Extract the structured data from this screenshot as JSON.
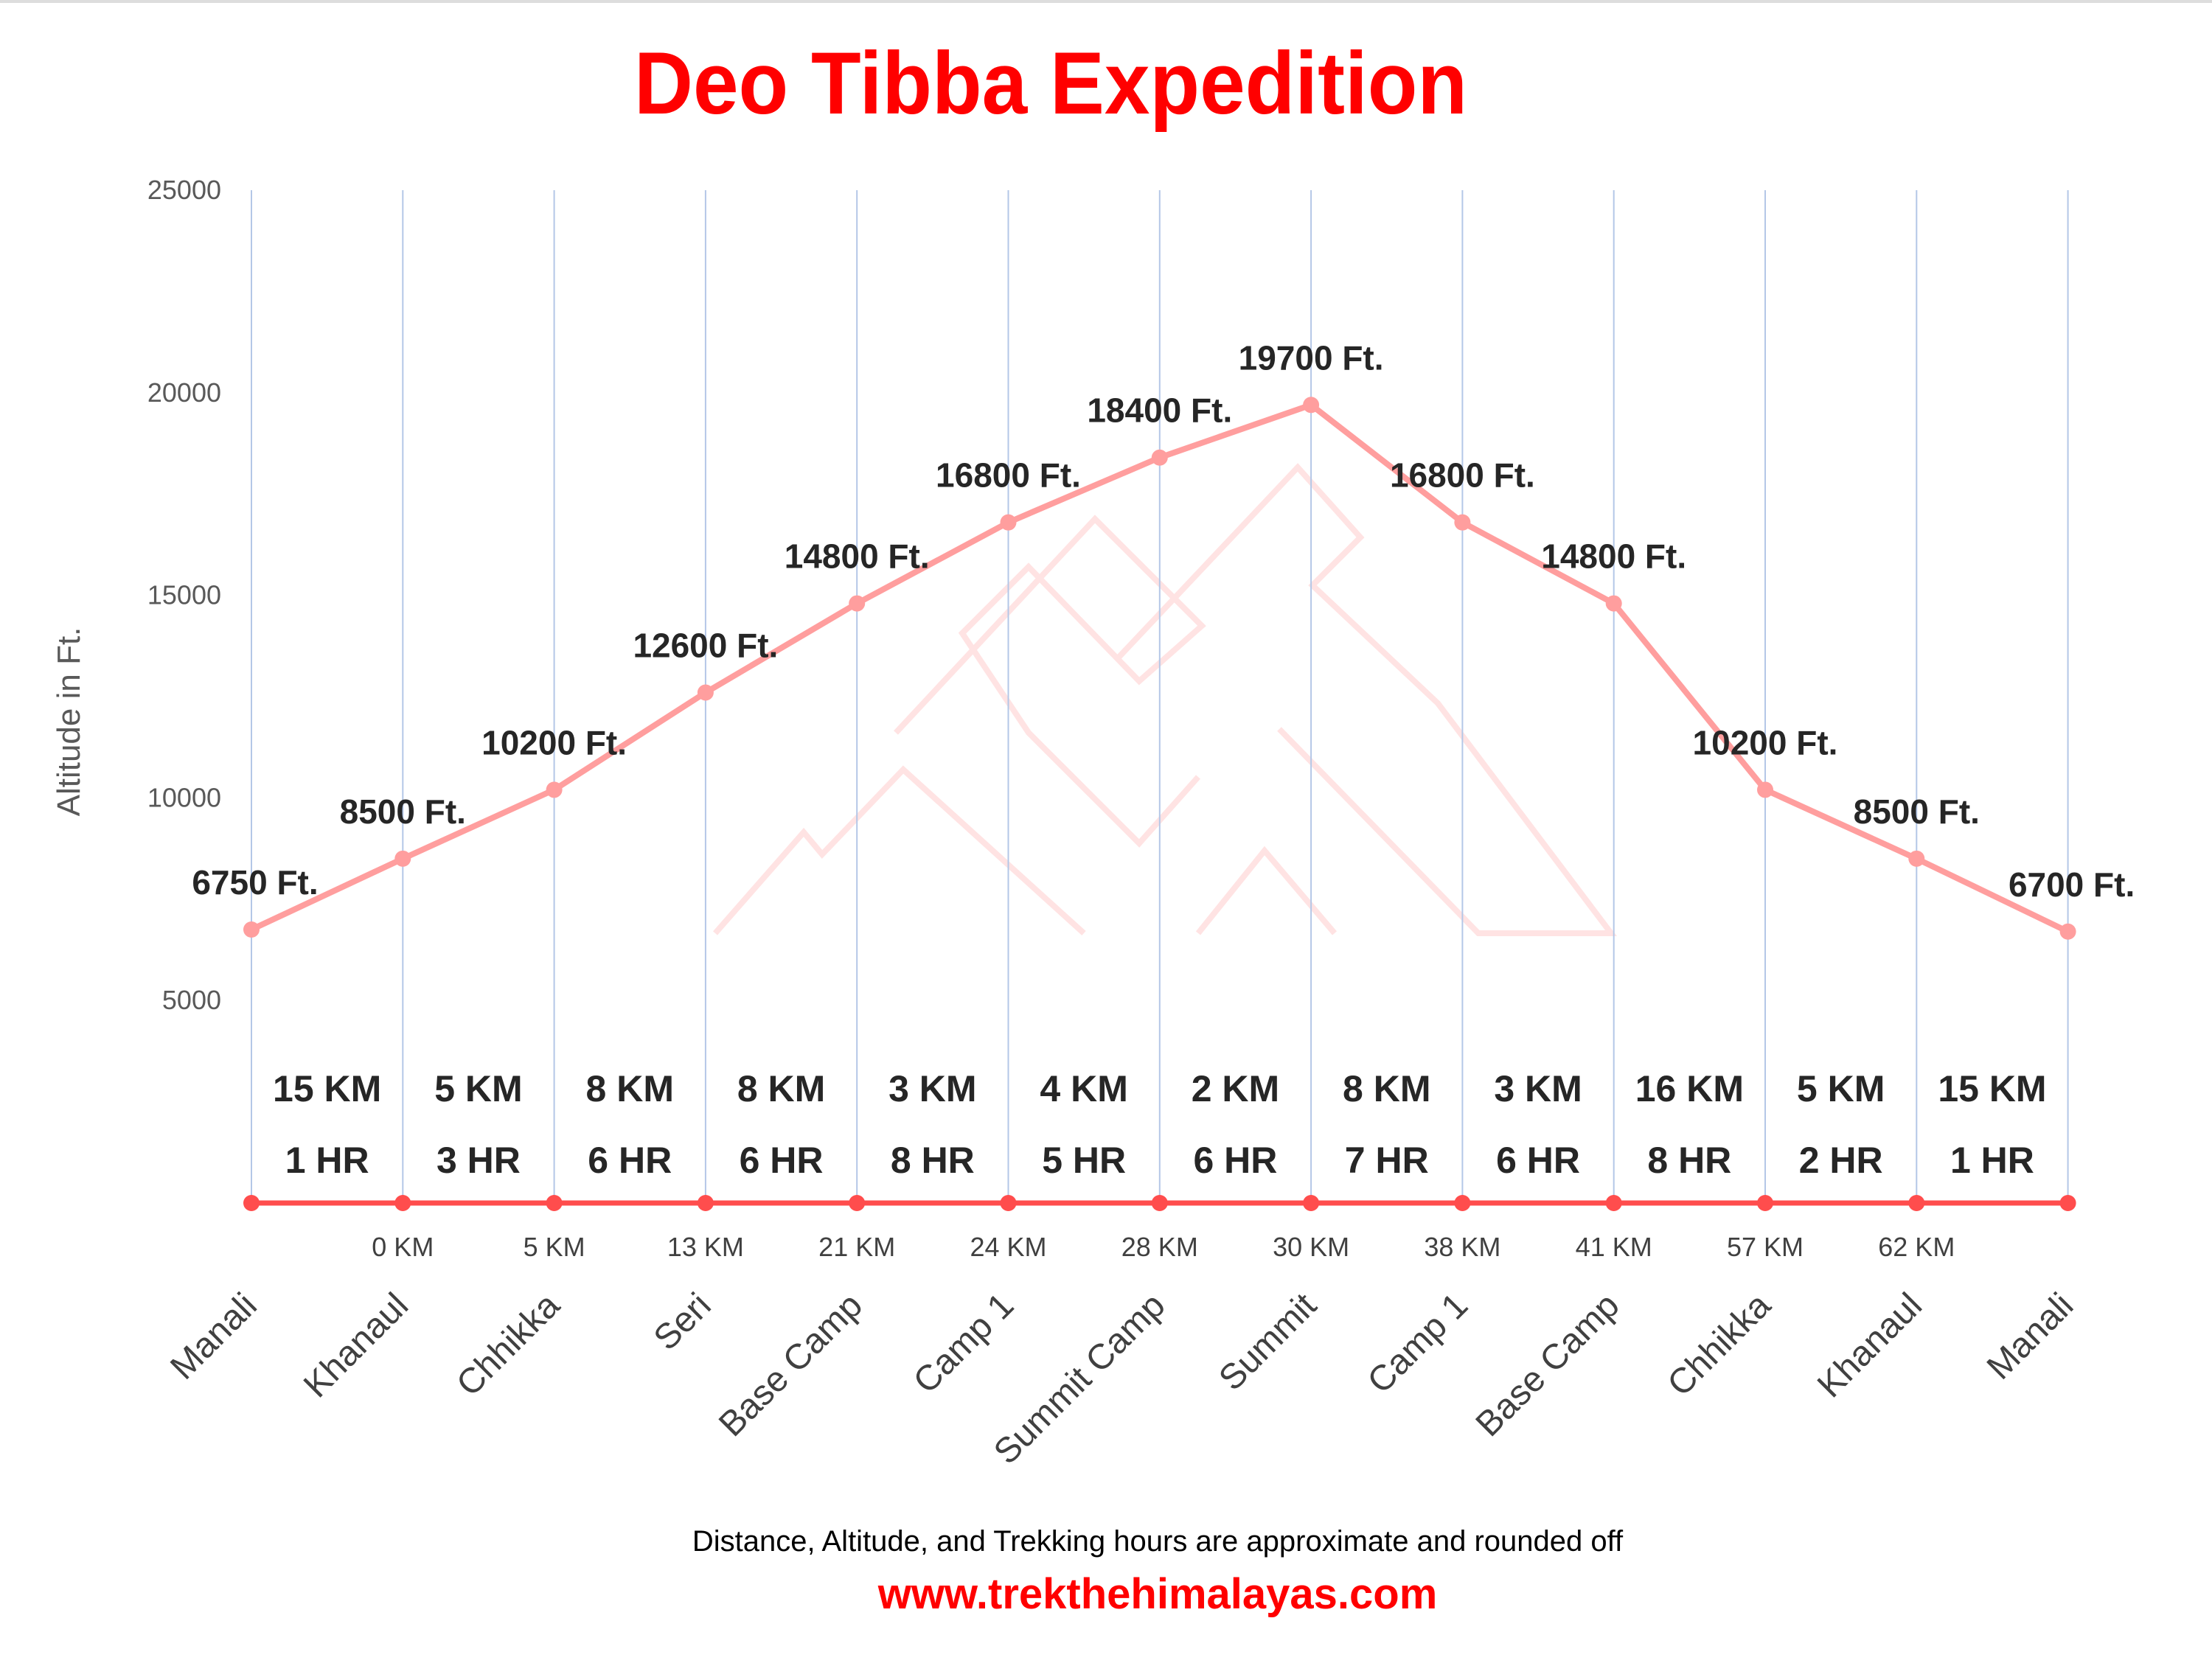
{
  "chart_data": {
    "type": "line",
    "title": "Deo Tibba Expedition",
    "ylabel": "Altitude in Ft.",
    "xlabel": "",
    "ylim": [
      0,
      25000
    ],
    "yticks": [
      5000,
      10000,
      15000,
      20000,
      25000
    ],
    "grid": "vertical lines at each category",
    "categories": [
      "Manali",
      "Khanaul",
      "Chhikka",
      "Seri",
      "Base Camp",
      "Camp 1",
      "Summit Camp",
      "Summit",
      "Camp 1",
      "Base Camp",
      "Chhikka",
      "Khanaul",
      "Manali"
    ],
    "series": [
      {
        "values": [
          6750,
          8500,
          10200,
          12600,
          14800,
          16800,
          18400,
          19700,
          16800,
          14800,
          10200,
          8500,
          6700
        ],
        "labels": [
          "6750 Ft.",
          "8500 Ft.",
          "10200 Ft.",
          "12600 Ft.",
          "14800 Ft.",
          "16800 Ft.",
          "18400 Ft.",
          "19700 Ft.",
          "16800 Ft.",
          "14800 Ft.",
          "10200 Ft.",
          "8500 Ft.",
          "6700 Ft."
        ],
        "color": "#ff9e9e"
      },
      {
        "values": [
          0,
          0,
          0,
          0,
          0,
          0,
          0,
          0,
          0,
          0,
          0,
          0,
          0
        ],
        "color": "#ff4d4d"
      }
    ],
    "segment_distances": [
      "15 KM",
      "5 KM",
      "8 KM",
      "8 KM",
      "3 KM",
      "4 KM",
      "2 KM",
      "8 KM",
      "3 KM",
      "16 KM",
      "5 KM",
      "15 KM"
    ],
    "segment_hours": [
      "1 HR",
      "3 HR",
      "6 HR",
      "6 HR",
      "8 HR",
      "5 HR",
      "6 HR",
      "7 HR",
      "6 HR",
      "8 HR",
      "2 HR",
      "1 HR"
    ],
    "cumulative_distances": [
      "",
      "0 KM",
      "5 KM",
      "13 KM",
      "21 KM",
      "24 KM",
      "28 KM",
      "30 KM",
      "38 KM",
      "41 KM",
      "57 KM",
      "62 KM",
      ""
    ]
  },
  "footer": {
    "note": "Distance, Altitude,  and Trekking hours are approximate and rounded  off",
    "url": "www.trekthehimalayas.com"
  },
  "colors": {
    "title": "#ff0000",
    "altitude_line": "#ff9e9e",
    "base_line": "#ff4d4d",
    "grid": "#b4c7e7",
    "watermark": "#ffe0e0"
  }
}
